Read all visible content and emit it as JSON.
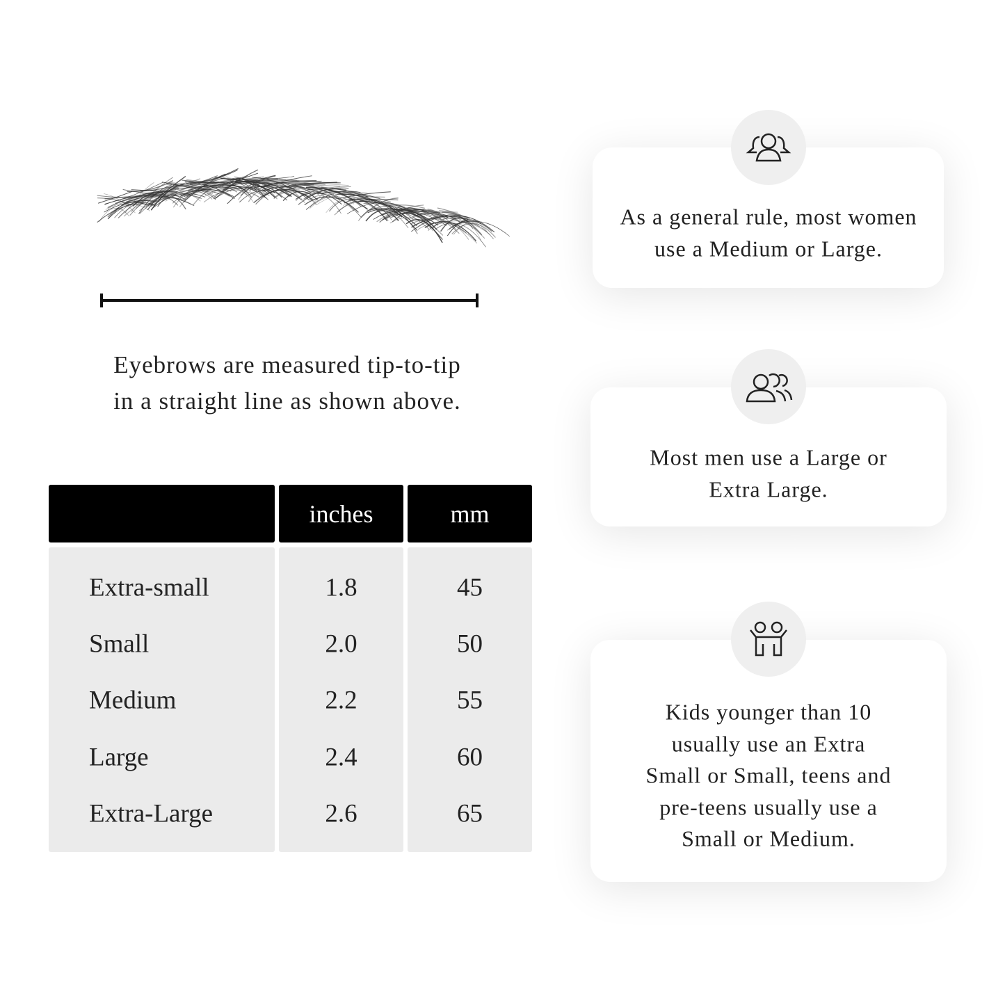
{
  "measure": {
    "caption_lines": [
      "Eyebrows are measured tip-to-tip",
      "in a straight line as shown above."
    ]
  },
  "table": {
    "header": [
      "inches",
      "mm"
    ],
    "rows": [
      [
        "Extra-small",
        "1.8",
        "45"
      ],
      [
        "Small",
        "2.0",
        "50"
      ],
      [
        "Medium",
        "2.2",
        "55"
      ],
      [
        "Large",
        "2.4",
        "60"
      ],
      [
        "Extra-Large",
        "2.6",
        "65"
      ]
    ]
  },
  "cards": [
    {
      "lines": [
        "As a general rule, most women",
        "use a Medium or Large."
      ]
    },
    {
      "lines": [
        "Most men use a Large or",
        "Extra Large."
      ]
    },
    {
      "lines": [
        "Kids younger than 10",
        "usually use an Extra",
        "Small or Small, teens and",
        "pre-teens usually use a",
        "Small or Medium."
      ]
    }
  ]
}
